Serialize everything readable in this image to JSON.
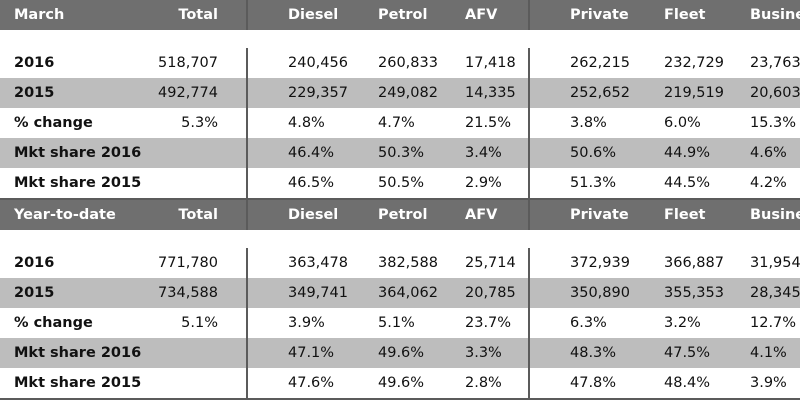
{
  "tables": [
    {
      "header": [
        "March",
        "Total",
        "Diesel",
        "Petrol",
        "AFV",
        "Private",
        "Fleet",
        "Business"
      ],
      "rows": [
        {
          "label": "2016",
          "total": "518,707",
          "values": [
            "240,456",
            "260,833",
            "17,418",
            "262,215",
            "232,729",
            "23,763"
          ]
        },
        {
          "label": "2015",
          "total": "492,774",
          "values": [
            "229,357",
            "249,082",
            "14,335",
            "252,652",
            "219,519",
            "20,603"
          ]
        },
        {
          "label": "% change",
          "total": "5.3%",
          "values": [
            "4.8%",
            "4.7%",
            "21.5%",
            "3.8%",
            "6.0%",
            "15.3%"
          ]
        },
        {
          "label": "Mkt share 2016",
          "total": "",
          "values": [
            "46.4%",
            "50.3%",
            "3.4%",
            "50.6%",
            "44.9%",
            "4.6%"
          ]
        },
        {
          "label": "Mkt share 2015",
          "total": "",
          "values": [
            "46.5%",
            "50.5%",
            "2.9%",
            "51.3%",
            "44.5%",
            "4.2%"
          ]
        }
      ]
    },
    {
      "header": [
        "Year-to-date",
        "Total",
        "Diesel",
        "Petrol",
        "AFV",
        "Private",
        "Fleet",
        "Business"
      ],
      "rows": [
        {
          "label": "2016",
          "total": "771,780",
          "values": [
            "363,478",
            "382,588",
            "25,714",
            "372,939",
            "366,887",
            "31,954"
          ]
        },
        {
          "label": "2015",
          "total": "734,588",
          "values": [
            "349,741",
            "364,062",
            "20,785",
            "350,890",
            "355,353",
            "28,345"
          ]
        },
        {
          "label": "% change",
          "total": "5.1%",
          "values": [
            "3.9%",
            "5.1%",
            "23.7%",
            "6.3%",
            "3.2%",
            "12.7%"
          ]
        },
        {
          "label": "Mkt share 2016",
          "total": "",
          "values": [
            "47.1%",
            "49.6%",
            "3.3%",
            "48.3%",
            "47.5%",
            "4.1%"
          ]
        },
        {
          "label": "Mkt share 2015",
          "total": "",
          "values": [
            "47.6%",
            "49.6%",
            "2.8%",
            "47.8%",
            "48.4%",
            "3.9%"
          ]
        }
      ]
    }
  ],
  "colors": {
    "header_bg": "#6f6f6f",
    "band_bg": "#bdbdbd",
    "text": "#111111",
    "rule": "#5b5b5b"
  }
}
